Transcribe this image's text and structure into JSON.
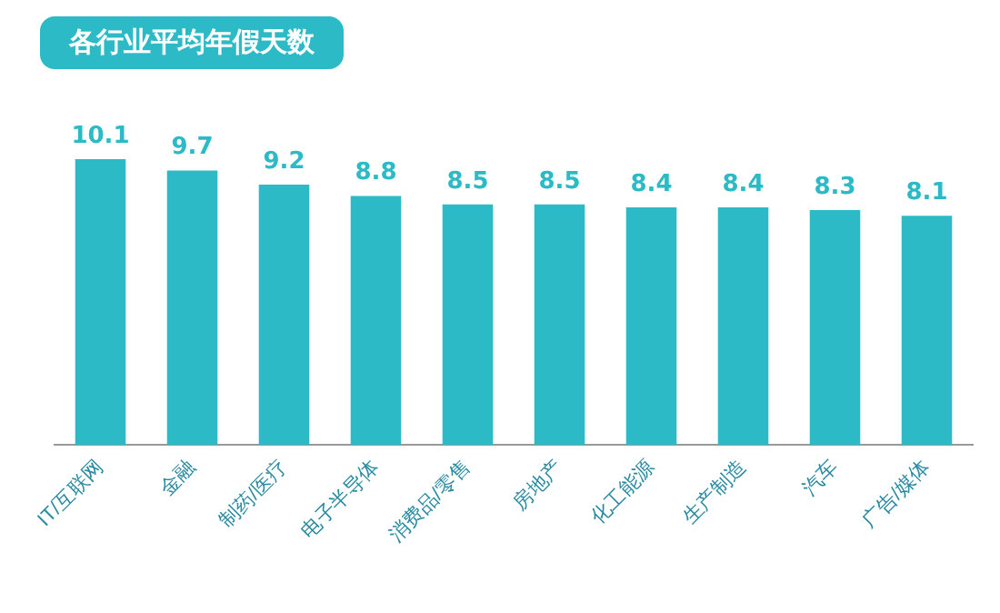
{
  "chart_data": {
    "type": "bar",
    "title": "各行业平均年假天数",
    "categories": [
      "IT/互联网",
      "金融",
      "制药/医疗",
      "电子半导体",
      "消费品/零售",
      "房地产",
      "化工能源",
      "生产制造",
      "汽车",
      "广告/媒体"
    ],
    "values": [
      10.1,
      9.7,
      9.2,
      8.8,
      8.5,
      8.5,
      8.4,
      8.4,
      8.3,
      8.1
    ],
    "color": "#2bbac6",
    "data_labels": true,
    "grid": false,
    "legend": false
  }
}
